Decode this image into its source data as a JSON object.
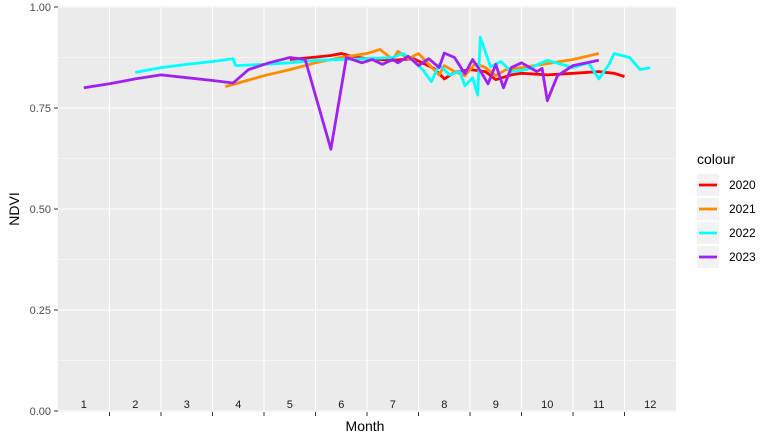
{
  "chart_data": {
    "type": "line",
    "xlabel": "Month",
    "ylabel": "NDVI",
    "ylim": [
      0,
      1
    ],
    "yticks": [
      "0.00",
      "0.25",
      "0.50",
      "0.75",
      "1.00"
    ],
    "xlim": [
      0.5,
      12.5
    ],
    "month_labels": [
      "1",
      "2",
      "3",
      "4",
      "5",
      "6",
      "7",
      "8",
      "9",
      "10",
      "11",
      "12"
    ],
    "grid": true,
    "legend": {
      "title": "colour",
      "position": "right"
    },
    "series": [
      {
        "name": "2020",
        "color": "#ff0000",
        "points": [
          [
            5.0,
            0.87
          ],
          [
            5.5,
            0.876
          ],
          [
            5.8,
            0.88
          ],
          [
            6.0,
            0.885
          ],
          [
            6.2,
            0.878
          ],
          [
            6.5,
            0.872
          ],
          [
            7.0,
            0.868
          ],
          [
            7.4,
            0.872
          ],
          [
            7.8,
            0.848
          ],
          [
            8.0,
            0.822
          ],
          [
            8.2,
            0.838
          ],
          [
            8.5,
            0.845
          ],
          [
            8.8,
            0.84
          ],
          [
            9.0,
            0.82
          ],
          [
            9.3,
            0.832
          ],
          [
            9.5,
            0.836
          ],
          [
            10.0,
            0.832
          ],
          [
            10.5,
            0.836
          ],
          [
            11.0,
            0.84
          ],
          [
            11.3,
            0.836
          ],
          [
            11.5,
            0.828
          ]
        ]
      },
      {
        "name": "2021",
        "color": "#ff8c00",
        "points": [
          [
            3.75,
            0.803
          ],
          [
            4.5,
            0.83
          ],
          [
            5.0,
            0.845
          ],
          [
            5.5,
            0.862
          ],
          [
            6.0,
            0.875
          ],
          [
            6.5,
            0.885
          ],
          [
            6.75,
            0.895
          ],
          [
            7.0,
            0.87
          ],
          [
            7.1,
            0.89
          ],
          [
            7.3,
            0.872
          ],
          [
            7.5,
            0.885
          ],
          [
            7.8,
            0.845
          ],
          [
            7.9,
            0.832
          ],
          [
            8.0,
            0.855
          ],
          [
            8.2,
            0.84
          ],
          [
            8.4,
            0.83
          ],
          [
            8.6,
            0.86
          ],
          [
            8.8,
            0.85
          ],
          [
            9.0,
            0.83
          ],
          [
            9.2,
            0.845
          ],
          [
            9.5,
            0.85
          ],
          [
            10.0,
            0.86
          ],
          [
            10.5,
            0.87
          ],
          [
            11.0,
            0.885
          ]
        ]
      },
      {
        "name": "2022",
        "color": "#00ffff",
        "points": [
          [
            2.0,
            0.838
          ],
          [
            2.5,
            0.85
          ],
          [
            3.0,
            0.858
          ],
          [
            3.5,
            0.865
          ],
          [
            3.9,
            0.872
          ],
          [
            3.95,
            0.855
          ],
          [
            4.5,
            0.858
          ],
          [
            5.0,
            0.862
          ],
          [
            5.5,
            0.868
          ],
          [
            6.0,
            0.87
          ],
          [
            6.5,
            0.872
          ],
          [
            7.0,
            0.875
          ],
          [
            7.2,
            0.885
          ],
          [
            7.4,
            0.868
          ],
          [
            7.6,
            0.842
          ],
          [
            7.75,
            0.815
          ],
          [
            7.9,
            0.858
          ],
          [
            8.1,
            0.832
          ],
          [
            8.3,
            0.84
          ],
          [
            8.4,
            0.805
          ],
          [
            8.55,
            0.825
          ],
          [
            8.65,
            0.782
          ],
          [
            8.7,
            0.925
          ],
          [
            8.9,
            0.852
          ],
          [
            9.1,
            0.865
          ],
          [
            9.3,
            0.84
          ],
          [
            9.6,
            0.845
          ],
          [
            10.0,
            0.868
          ],
          [
            10.5,
            0.85
          ],
          [
            10.8,
            0.862
          ],
          [
            11.0,
            0.822
          ],
          [
            11.2,
            0.858
          ],
          [
            11.3,
            0.885
          ],
          [
            11.6,
            0.875
          ],
          [
            11.8,
            0.845
          ],
          [
            12.0,
            0.85
          ]
        ]
      },
      {
        "name": "2023",
        "color": "#a020f0",
        "points": [
          [
            1.0,
            0.8
          ],
          [
            1.5,
            0.81
          ],
          [
            2.0,
            0.822
          ],
          [
            2.5,
            0.832
          ],
          [
            3.0,
            0.825
          ],
          [
            3.5,
            0.818
          ],
          [
            3.9,
            0.812
          ],
          [
            4.2,
            0.845
          ],
          [
            4.6,
            0.862
          ],
          [
            5.0,
            0.875
          ],
          [
            5.3,
            0.87
          ],
          [
            5.8,
            0.648
          ],
          [
            6.1,
            0.875
          ],
          [
            6.4,
            0.862
          ],
          [
            6.6,
            0.87
          ],
          [
            6.8,
            0.858
          ],
          [
            7.0,
            0.87
          ],
          [
            7.1,
            0.862
          ],
          [
            7.3,
            0.878
          ],
          [
            7.5,
            0.855
          ],
          [
            7.7,
            0.872
          ],
          [
            7.9,
            0.85
          ],
          [
            8.0,
            0.886
          ],
          [
            8.2,
            0.875
          ],
          [
            8.4,
            0.835
          ],
          [
            8.55,
            0.87
          ],
          [
            8.7,
            0.842
          ],
          [
            8.85,
            0.81
          ],
          [
            9.0,
            0.858
          ],
          [
            9.15,
            0.8
          ],
          [
            9.3,
            0.85
          ],
          [
            9.5,
            0.862
          ],
          [
            9.8,
            0.84
          ],
          [
            9.9,
            0.848
          ],
          [
            10.0,
            0.768
          ],
          [
            10.2,
            0.83
          ],
          [
            10.5,
            0.855
          ],
          [
            11.0,
            0.868
          ]
        ]
      }
    ]
  }
}
